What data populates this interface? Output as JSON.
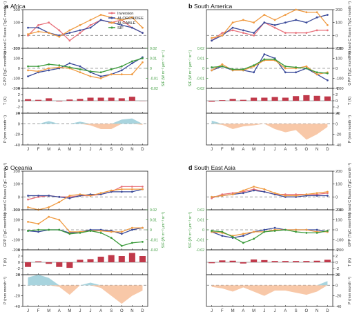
{
  "figure": {
    "months": [
      "J",
      "F",
      "M",
      "A",
      "M",
      "J",
      "J",
      "A",
      "S",
      "O",
      "N",
      "D"
    ],
    "axis_labels": {
      "flux": "Net land C fluxes (TgC month⁻¹)",
      "gpp": "GPP (TgC month⁻¹)",
      "sif": "SIF (W m⁻² µm⁻¹ sr⁻¹)",
      "temp": "T (K)",
      "precip": "P (mm month⁻¹)"
    },
    "legend": [
      {
        "name": "Inversion",
        "color": "#e8707a"
      },
      {
        "name": "AI-ORCHIDEE",
        "color": "#3a4a9a"
      },
      {
        "name": "AI-CABLE",
        "color": "#f09a40"
      },
      {
        "name": "SIF",
        "color": "#3a9a3a"
      }
    ],
    "colors": {
      "bar": "#c0394a",
      "precip_positive": "#a8d4de",
      "precip_negative": "#f8c8a8",
      "zero_line": "#888888",
      "sif_axis": "#3a9a3a"
    }
  },
  "chart_data": [
    {
      "panel": "a",
      "region": "Africa",
      "type": "line",
      "flux": {
        "ylim": [
          -100,
          200
        ],
        "ticks": [
          -100,
          0,
          100,
          200
        ],
        "series": [
          {
            "name": "Inversion",
            "values": [
              0,
              80,
              100,
              40,
              -40,
              20,
              80,
              120,
              100,
              120,
              60,
              20
            ]
          },
          {
            "name": "AI-ORCHIDEE",
            "values": [
              60,
              60,
              20,
              0,
              20,
              40,
              60,
              120,
              100,
              80,
              60,
              20
            ]
          },
          {
            "name": "AI-CABLE",
            "values": [
              10,
              30,
              20,
              -10,
              40,
              80,
              120,
              160,
              140,
              120,
              140,
              60
            ]
          }
        ]
      },
      "gpp": {
        "ylim": [
          -200,
          200
        ],
        "ticks": [
          -200,
          -100,
          0,
          100,
          200
        ],
        "series": [
          {
            "name": "AI-ORCHIDEE",
            "values": [
              -80,
              -40,
              -20,
              0,
              50,
              20,
              -40,
              -80,
              -60,
              -20,
              50,
              110
            ]
          },
          {
            "name": "AI-CABLE",
            "values": [
              -20,
              -30,
              0,
              10,
              0,
              -40,
              -80,
              -100,
              -60,
              -60,
              -60,
              60
            ]
          }
        ]
      },
      "sif": {
        "ylim": [
          -0.02,
          0.02
        ],
        "ticks": [
          -0.02,
          -0.01,
          0,
          0.01,
          0.02
        ],
        "series": [
          {
            "name": "SIF",
            "values": [
              0.002,
              0.002,
              0.004,
              0.003,
              0.001,
              -0.001,
              -0.003,
              -0.004,
              -0.001,
              0.002,
              0.007,
              0.01
            ]
          }
        ]
      },
      "temp": {
        "ylim": [
          -4,
          4
        ],
        "ticks": [
          -4,
          -2,
          0,
          2,
          4
        ],
        "values": [
          0.5,
          0.3,
          0.8,
          -0.2,
          0.4,
          0.6,
          1.0,
          1.0,
          1.0,
          0.8,
          1.3,
          0
        ]
      },
      "precip": {
        "ylim": [
          -40,
          20
        ],
        "ticks": [
          -40,
          -20,
          0,
          20
        ],
        "values": [
          0,
          0,
          5,
          0,
          0,
          4,
          -3,
          -10,
          -10,
          8,
          10,
          -2
        ]
      }
    },
    {
      "panel": "b",
      "region": "South America",
      "type": "line",
      "flux": {
        "ylim": [
          -100,
          200
        ],
        "ticks": [
          -100,
          0,
          100,
          200
        ],
        "series": [
          {
            "name": "Inversion",
            "values": [
              -40,
              20,
              40,
              20,
              0,
              100,
              60,
              20,
              20,
              20,
              40,
              40
            ]
          },
          {
            "name": "AI-ORCHIDEE",
            "values": [
              -40,
              0,
              60,
              40,
              20,
              100,
              80,
              100,
              120,
              100,
              140,
              160
            ]
          },
          {
            "name": "AI-CABLE",
            "values": [
              -20,
              0,
              100,
              120,
              100,
              160,
              120,
              160,
              200,
              180,
              180,
              80
            ]
          }
        ]
      },
      "gpp": {
        "ylim": [
          -200,
          200
        ],
        "ticks": [
          -200,
          -100,
          0,
          100,
          200
        ],
        "series": [
          {
            "name": "AI-ORCHIDEE",
            "values": [
              -20,
              20,
              -20,
              -20,
              -40,
              140,
              100,
              -40,
              -40,
              0,
              -60,
              -120
            ]
          },
          {
            "name": "AI-CABLE",
            "values": [
              -20,
              40,
              -20,
              -20,
              20,
              80,
              80,
              0,
              0,
              20,
              -60,
              -40
            ]
          }
        ]
      },
      "sif": {
        "ylim": [
          -0.02,
          0.02
        ],
        "ticks": [
          -0.02,
          -0.01,
          0,
          0.01,
          0.02
        ],
        "series": [
          {
            "name": "SIF",
            "values": [
              0.001,
              0.002,
              -0.001,
              -0.001,
              0.003,
              0.009,
              0.009,
              0.002,
              0.001,
              0.0,
              -0.004,
              -0.005
            ]
          }
        ]
      },
      "temp": {
        "ylim": [
          -4,
          4
        ],
        "ticks": [
          -4,
          -2,
          0,
          2,
          4
        ],
        "values": [
          -0.3,
          0.2,
          0.6,
          0.3,
          1.0,
          1.0,
          1.2,
          1.0,
          1.5,
          1.8,
          1.6,
          1.4
        ]
      },
      "precip": {
        "ylim": [
          -40,
          20
        ],
        "ticks": [
          -40,
          -20,
          0,
          20
        ],
        "values": [
          6,
          -2,
          -10,
          -5,
          -3,
          0,
          -10,
          -16,
          -12,
          -30,
          -20,
          -6
        ]
      }
    },
    {
      "panel": "c",
      "region": "Oceania",
      "type": "line",
      "flux": {
        "ylim": [
          -100,
          200
        ],
        "ticks": [
          -100,
          0,
          100,
          200
        ],
        "series": [
          {
            "name": "Inversion",
            "values": [
              -20,
              0,
              10,
              0,
              0,
              10,
              10,
              20,
              40,
              80,
              80,
              80
            ]
          },
          {
            "name": "AI-ORCHIDEE",
            "values": [
              10,
              10,
              10,
              0,
              -10,
              10,
              20,
              20,
              40,
              40,
              40,
              60
            ]
          },
          {
            "name": "AI-CABLE",
            "values": [
              -80,
              -100,
              -80,
              -40,
              10,
              20,
              10,
              30,
              50,
              60,
              60,
              60
            ]
          }
        ]
      },
      "gpp": {
        "ylim": [
          -200,
          200
        ],
        "ticks": [
          -200,
          -100,
          0,
          100,
          200
        ],
        "series": [
          {
            "name": "AI-ORCHIDEE",
            "values": [
              -10,
              -20,
              0,
              0,
              -30,
              -20,
              0,
              0,
              -10,
              -40,
              0,
              20
            ]
          },
          {
            "name": "AI-CABLE",
            "values": [
              80,
              60,
              130,
              100,
              -20,
              -20,
              -10,
              -10,
              -20,
              -20,
              20,
              20
            ]
          }
        ]
      },
      "sif": {
        "ylim": [
          -0.02,
          0.02
        ],
        "ticks": [
          -0.02,
          -0.01,
          0,
          0.01,
          0.02
        ],
        "series": [
          {
            "name": "SIF",
            "values": [
              -0.001,
              0.0,
              0.0,
              0.0,
              -0.004,
              -0.003,
              -0.001,
              -0.003,
              -0.008,
              -0.016,
              -0.013,
              -0.012
            ]
          }
        ]
      },
      "temp": {
        "ylim": [
          -4,
          4
        ],
        "ticks": [
          -4,
          -2,
          0,
          2,
          4
        ],
        "values": [
          -1.5,
          0.3,
          -0.5,
          -1.5,
          -1.8,
          0.8,
          1.0,
          1.8,
          2.3,
          2.0,
          3.0,
          2.0
        ]
      },
      "precip": {
        "ylim": [
          -40,
          20
        ],
        "ticks": [
          -40,
          -20,
          0,
          20
        ],
        "values": [
          15,
          20,
          14,
          -3,
          -18,
          0,
          5,
          -5,
          -20,
          -35,
          -20,
          -10
        ]
      }
    },
    {
      "panel": "d",
      "region": "South East Asia",
      "type": "line",
      "flux": {
        "ylim": [
          -100,
          200
        ],
        "ticks": [
          -100,
          0,
          100,
          200
        ],
        "series": [
          {
            "name": "Inversion",
            "values": [
              -10,
              20,
              30,
              40,
              60,
              40,
              20,
              20,
              20,
              20,
              20,
              30
            ]
          },
          {
            "name": "AI-ORCHIDEE",
            "values": [
              0,
              10,
              20,
              30,
              50,
              40,
              20,
              0,
              0,
              10,
              10,
              10
            ]
          },
          {
            "name": "AI-CABLE",
            "values": [
              0,
              10,
              20,
              50,
              80,
              60,
              30,
              10,
              10,
              20,
              30,
              40
            ]
          }
        ]
      },
      "gpp": {
        "ylim": [
          -200,
          200
        ],
        "ticks": [
          -200,
          -100,
          0,
          100,
          200
        ],
        "series": [
          {
            "name": "AI-ORCHIDEE",
            "values": [
              -20,
              -60,
              -80,
              -60,
              -20,
              0,
              20,
              0,
              0,
              0,
              0,
              -20
            ]
          },
          {
            "name": "AI-CABLE",
            "values": [
              -20,
              -30,
              -60,
              -40,
              -20,
              -20,
              0,
              0,
              0,
              0,
              -20,
              -20
            ]
          }
        ]
      },
      "sif": {
        "ylim": [
          -0.02,
          0.02
        ],
        "ticks": [
          -0.02,
          -0.01,
          0,
          0.01,
          0.02
        ],
        "series": [
          {
            "name": "SIF",
            "values": [
              -0.001,
              -0.002,
              -0.007,
              -0.013,
              -0.009,
              -0.002,
              -0.001,
              0.0,
              -0.002,
              -0.003,
              -0.003,
              -0.001
            ]
          }
        ]
      },
      "temp": {
        "ylim": [
          -4,
          4
        ],
        "ticks": [
          -4,
          -2,
          0,
          2,
          4
        ],
        "values": [
          -0.3,
          0.6,
          0.5,
          -0.4,
          0.9,
          0.7,
          0.4,
          0.4,
          0.4,
          0.4,
          0.5,
          0.8
        ]
      },
      "precip": {
        "ylim": [
          -40,
          20
        ],
        "ticks": [
          -40,
          -20,
          0,
          20
        ],
        "values": [
          -3,
          -6,
          -12,
          -4,
          -12,
          -20,
          -10,
          -10,
          -14,
          -18,
          -12,
          8
        ]
      }
    }
  ]
}
